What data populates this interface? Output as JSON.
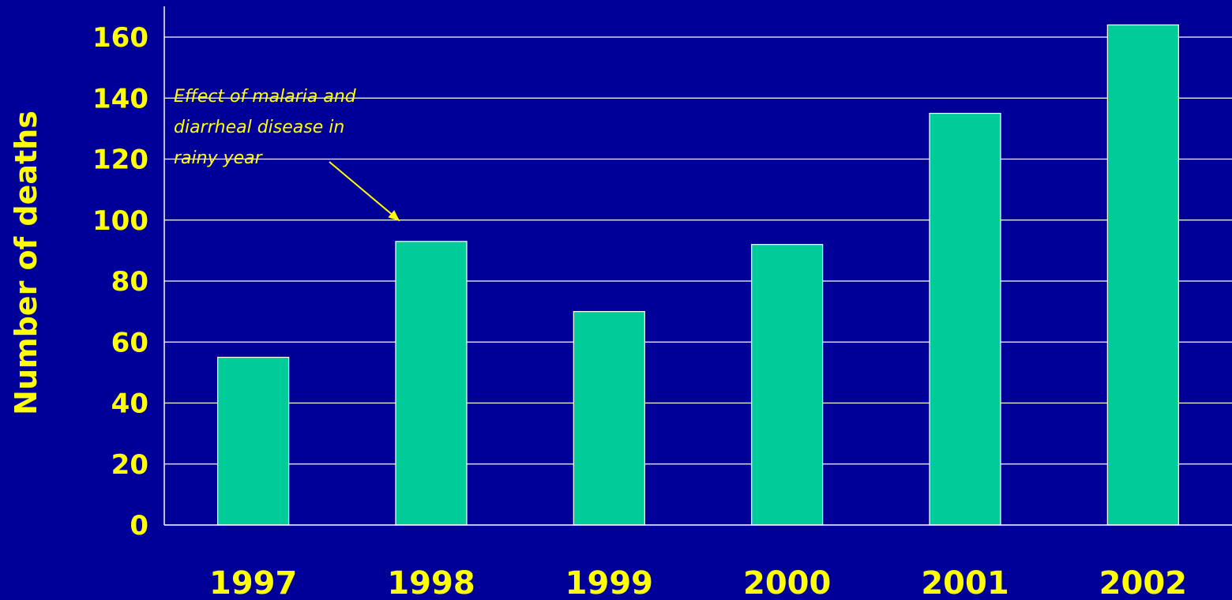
{
  "chart_data": {
    "type": "bar",
    "categories": [
      "1997",
      "1998",
      "1999",
      "2000",
      "2001",
      "2002"
    ],
    "values": [
      55,
      93,
      70,
      92,
      135,
      164
    ],
    "title": "",
    "xlabel": "",
    "ylabel": "Number of deaths",
    "ylim": [
      0,
      160
    ],
    "yticks": [
      0,
      20,
      40,
      60,
      80,
      100,
      120,
      140,
      160
    ],
    "grid": true,
    "legend": "none",
    "annotation": {
      "lines": [
        "Effect of malaria and",
        "diarrheal disease in",
        "rainy year"
      ],
      "target_category": "1998"
    },
    "colors": {
      "background": "#000099",
      "bar": "#00CC99",
      "bar_outline": "#FFFFFF",
      "text": "#FFFF00",
      "grid": "#FFFFFF",
      "arrow": "#FFFF00"
    }
  }
}
